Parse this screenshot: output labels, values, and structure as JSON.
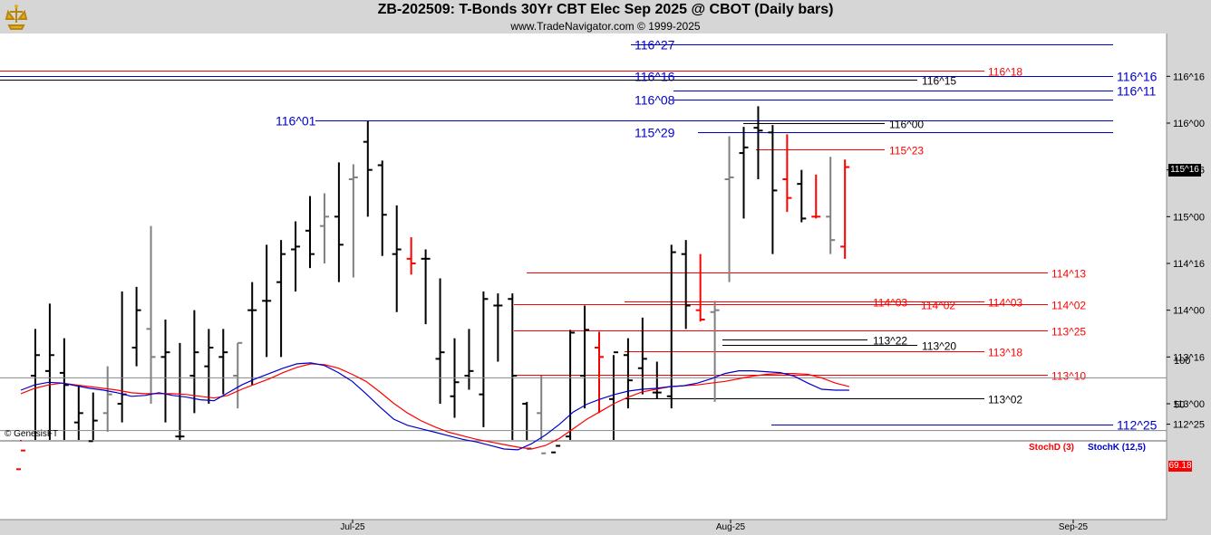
{
  "header": {
    "title": "ZB-202509:  T-Bonds 30Yr CBT Elec Sep 2025 @ CBOT  (Daily bars)",
    "subtitle": "www.TradeNavigator.com © 1999-2025",
    "watermark": "© GenesisFT"
  },
  "colors": {
    "up": "#000000",
    "down": "#ff0000",
    "neutral": "#808080",
    "level_blue": "#0000cc",
    "level_red": "#ff0000",
    "stochD": "#ff0000",
    "stochK": "#0000cc"
  },
  "chart_data": [
    {
      "type": "ohlc",
      "title": "ZB-202509:  T-Bonds 30Yr CBT Elec Sep 2025 @ CBOT  (Daily bars)",
      "price_unit": "32nds",
      "y_axis_ticks": [
        "112^25",
        "113^00",
        "113^16",
        "114^00",
        "114^16",
        "115^00",
        "115^16",
        "116^00",
        "116^16"
      ],
      "x_axis_ticks": [
        "Jul-25",
        "Aug-25",
        "Sep-25"
      ],
      "current_price": "115^16",
      "bars": [
        {
          "o": 112.3,
          "h": 112.6,
          "l": 112.2,
          "c": 112.5,
          "color": "down"
        },
        {
          "o": 113.3,
          "h": 113.8,
          "l": 112.4,
          "c": 113.52,
          "color": "up"
        },
        {
          "o": 113.35,
          "h": 114.07,
          "l": 112.55,
          "c": 113.52,
          "color": "up"
        },
        {
          "o": 113.33,
          "h": 113.7,
          "l": 112.4,
          "c": 113.2,
          "color": "up"
        },
        {
          "o": 112.8,
          "h": 113.2,
          "l": 112.6,
          "c": 112.9,
          "color": "up"
        },
        {
          "o": 112.6,
          "h": 113.12,
          "l": 112.4,
          "c": 112.82,
          "color": "up"
        },
        {
          "o": 112.9,
          "h": 113.4,
          "l": 112.7,
          "c": 113.1,
          "color": "neutral"
        },
        {
          "o": 113.0,
          "h": 114.2,
          "l": 112.8,
          "c": 113.1,
          "color": "up"
        },
        {
          "o": 113.6,
          "h": 114.25,
          "l": 113.4,
          "c": 114.0,
          "color": "up"
        },
        {
          "o": 113.8,
          "h": 114.9,
          "l": 113.0,
          "c": 113.5,
          "color": "neutral"
        },
        {
          "o": 113.5,
          "h": 113.9,
          "l": 112.8,
          "c": 113.55,
          "color": "up"
        },
        {
          "o": 112.65,
          "h": 113.65,
          "l": 112.4,
          "c": 112.65,
          "color": "up"
        },
        {
          "o": 113.3,
          "h": 114.0,
          "l": 112.9,
          "c": 113.55,
          "color": "up"
        },
        {
          "o": 113.4,
          "h": 113.8,
          "l": 113.0,
          "c": 113.6,
          "color": "up"
        },
        {
          "o": 113.5,
          "h": 113.8,
          "l": 113.1,
          "c": 113.55,
          "color": "up"
        },
        {
          "o": 113.3,
          "h": 113.65,
          "l": 112.95,
          "c": 113.65,
          "color": "neutral"
        },
        {
          "o": 114.0,
          "h": 114.3,
          "l": 113.2,
          "c": 114.0,
          "color": "up"
        },
        {
          "o": 114.1,
          "h": 114.7,
          "l": 113.5,
          "c": 114.1,
          "color": "up"
        },
        {
          "o": 114.3,
          "h": 114.75,
          "l": 113.5,
          "c": 114.6,
          "color": "up"
        },
        {
          "o": 114.65,
          "h": 114.95,
          "l": 114.2,
          "c": 114.68,
          "color": "up"
        },
        {
          "o": 114.85,
          "h": 115.22,
          "l": 114.45,
          "c": 114.6,
          "color": "up"
        },
        {
          "o": 114.9,
          "h": 115.25,
          "l": 114.5,
          "c": 115.0,
          "color": "neutral"
        },
        {
          "o": 115.0,
          "h": 115.58,
          "l": 114.3,
          "c": 114.7,
          "color": "up"
        },
        {
          "o": 115.4,
          "h": 115.56,
          "l": 114.35,
          "c": 115.42,
          "color": "neutral"
        },
        {
          "o": 115.8,
          "h": 116.02,
          "l": 115.0,
          "c": 115.5,
          "color": "up"
        },
        {
          "o": 115.55,
          "h": 115.6,
          "l": 114.58,
          "c": 115.02,
          "color": "up"
        },
        {
          "o": 114.6,
          "h": 115.12,
          "l": 113.98,
          "c": 114.65,
          "color": "up"
        },
        {
          "o": 114.55,
          "h": 114.78,
          "l": 114.38,
          "c": 114.5,
          "color": "down"
        },
        {
          "o": 114.55,
          "h": 114.65,
          "l": 113.85,
          "c": 114.55,
          "color": "up"
        },
        {
          "o": 113.48,
          "h": 114.34,
          "l": 113.0,
          "c": 113.55,
          "color": "up"
        },
        {
          "o": 113.08,
          "h": 113.7,
          "l": 112.85,
          "c": 113.23,
          "color": "up"
        },
        {
          "o": 113.3,
          "h": 113.8,
          "l": 113.15,
          "c": 113.35,
          "color": "up"
        },
        {
          "o": 113.1,
          "h": 114.2,
          "l": 112.75,
          "c": 114.12,
          "color": "up"
        },
        {
          "o": 114.05,
          "h": 114.18,
          "l": 113.45,
          "c": 114.05,
          "color": "up"
        },
        {
          "o": 114.12,
          "h": 114.18,
          "l": 112.5,
          "c": 113.3,
          "color": "up"
        },
        {
          "o": 113.0,
          "h": 113.02,
          "l": 112.4,
          "c": 112.52,
          "color": "up"
        },
        {
          "o": 112.9,
          "h": 113.3,
          "l": 112.4,
          "c": 112.47,
          "color": "neutral"
        },
        {
          "o": 112.48,
          "h": 112.6,
          "l": 112.35,
          "c": 112.55,
          "color": "up"
        },
        {
          "o": 112.65,
          "h": 113.79,
          "l": 112.4,
          "c": 113.76,
          "color": "up"
        },
        {
          "o": 113.3,
          "h": 114.05,
          "l": 112.95,
          "c": 113.79,
          "color": "up"
        },
        {
          "o": 113.6,
          "h": 113.77,
          "l": 112.9,
          "c": 113.5,
          "color": "down"
        },
        {
          "o": 113.05,
          "h": 113.52,
          "l": 112.58,
          "c": 113.55,
          "color": "up"
        },
        {
          "o": 113.52,
          "h": 113.7,
          "l": 112.95,
          "c": 113.25,
          "color": "up"
        },
        {
          "o": 113.38,
          "h": 113.92,
          "l": 113.1,
          "c": 113.48,
          "color": "up"
        },
        {
          "o": 113.12,
          "h": 113.45,
          "l": 113.05,
          "c": 113.12,
          "color": "up"
        },
        {
          "o": 113.08,
          "h": 114.7,
          "l": 112.95,
          "c": 114.62,
          "color": "up"
        },
        {
          "o": 114.6,
          "h": 114.75,
          "l": 113.8,
          "c": 114.05,
          "color": "up"
        },
        {
          "o": 114.0,
          "h": 114.6,
          "l": 113.88,
          "c": 113.9,
          "color": "down"
        },
        {
          "o": 113.98,
          "h": 114.1,
          "l": 113.02,
          "c": 114.0,
          "color": "neutral"
        },
        {
          "o": 115.4,
          "h": 115.86,
          "l": 114.3,
          "c": 115.42,
          "color": "neutral"
        },
        {
          "o": 115.68,
          "h": 115.96,
          "l": 114.98,
          "c": 115.74,
          "color": "up"
        },
        {
          "o": 115.95,
          "h": 116.18,
          "l": 115.4,
          "c": 115.92,
          "color": "up"
        },
        {
          "o": 115.9,
          "h": 115.98,
          "l": 114.6,
          "c": 115.28,
          "color": "up"
        },
        {
          "o": 115.4,
          "h": 115.88,
          "l": 115.05,
          "c": 115.2,
          "color": "down"
        },
        {
          "o": 115.35,
          "h": 115.5,
          "l": 114.94,
          "c": 114.98,
          "color": "up"
        },
        {
          "o": 115.0,
          "h": 115.45,
          "l": 114.98,
          "c": 115.0,
          "color": "down"
        },
        {
          "o": 115.0,
          "h": 115.64,
          "l": 114.6,
          "c": 114.75,
          "color": "neutral"
        },
        {
          "o": 114.68,
          "h": 115.61,
          "l": 114.55,
          "c": 115.53,
          "color": "down"
        }
      ],
      "levels": [
        {
          "value": "116^27",
          "color": "blue",
          "label_side": "left"
        },
        {
          "value": "116^18",
          "color": "red",
          "label_side": "right"
        },
        {
          "value": "116^16",
          "color": "blue",
          "label_side": "both"
        },
        {
          "value": "116^15",
          "color": "black",
          "label_side": "right"
        },
        {
          "value": "116^11",
          "color": "blue",
          "label_side": "right"
        },
        {
          "value": "116^08",
          "color": "blue",
          "label_side": "left"
        },
        {
          "value": "116^01",
          "color": "blue",
          "label_side": "left"
        },
        {
          "value": "116^00",
          "color": "black",
          "label_side": "right"
        },
        {
          "value": "115^29",
          "color": "blue",
          "label_side": "left"
        },
        {
          "value": "115^23",
          "color": "red",
          "label_side": "right"
        },
        {
          "value": "114^13",
          "color": "red",
          "label_side": "right"
        },
        {
          "value": "114^03",
          "color": "red",
          "label_side": "both"
        },
        {
          "value": "114^02",
          "color": "red",
          "label_side": "both"
        },
        {
          "value": "113^25",
          "color": "red",
          "label_side": "right"
        },
        {
          "value": "113^22",
          "color": "black",
          "label_side": "right"
        },
        {
          "value": "113^20",
          "color": "black",
          "label_side": "right"
        },
        {
          "value": "113^18",
          "color": "red",
          "label_side": "right"
        },
        {
          "value": "113^10",
          "color": "red",
          "label_side": "right"
        },
        {
          "value": "113^02",
          "color": "black",
          "label_side": "right"
        },
        {
          "value": "112^25",
          "color": "blue",
          "label_side": "right"
        }
      ]
    },
    {
      "type": "line",
      "panel": "stochastics",
      "legend": [
        "StochD (3)",
        "StochK (12,5)"
      ],
      "y_axis_ticks": [
        "100",
        "50"
      ],
      "ylim": [
        0,
        100
      ],
      "current_value": "69.18",
      "series": [
        {
          "name": "StochD (3)",
          "color": "red",
          "values": [
            62,
            68,
            72,
            74,
            72,
            70,
            68,
            66,
            63,
            62,
            62,
            62,
            61,
            59,
            57,
            60,
            67,
            73,
            79,
            86,
            92,
            96,
            95,
            91,
            84,
            76,
            64,
            51,
            40,
            31,
            24,
            18,
            14,
            10,
            7,
            4,
            1,
            -1,
            3,
            11,
            22,
            33,
            42,
            51,
            58,
            64,
            67,
            70,
            71,
            72,
            74,
            76,
            79,
            82,
            84,
            85,
            85,
            84,
            80,
            74,
            70
          ]
        },
        {
          "name": "StochK (12,5)",
          "color": "blue",
          "values": [
            66,
            72,
            75,
            74,
            71,
            68,
            66,
            63,
            59,
            60,
            63,
            60,
            58,
            55,
            54,
            63,
            72,
            79,
            85,
            91,
            96,
            97,
            94,
            86,
            76,
            62,
            47,
            33,
            26,
            22,
            18,
            14,
            10,
            7,
            3,
            -1,
            -2,
            5,
            15,
            27,
            41,
            50,
            56,
            61,
            65,
            67,
            68,
            70,
            71,
            74,
            79,
            85,
            88,
            88,
            87,
            86,
            82,
            74,
            67,
            66,
            66
          ]
        }
      ]
    }
  ]
}
